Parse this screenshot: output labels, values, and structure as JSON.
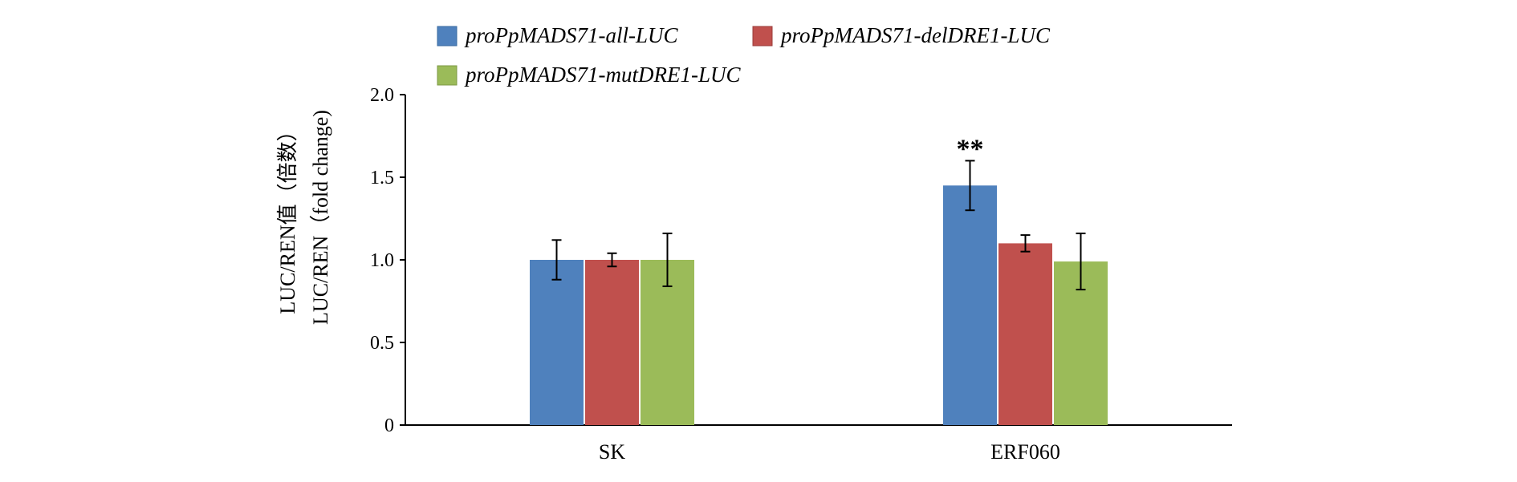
{
  "chart_data": {
    "type": "bar",
    "title": "",
    "categories": [
      "SK",
      "ERF060"
    ],
    "series": [
      {
        "name": "proPpMADS71-all-LUC",
        "color": "#4f81bd",
        "values": [
          1.0,
          1.45
        ],
        "errors": [
          0.12,
          0.15
        ]
      },
      {
        "name": "proPpMADS71-delDRE1-LUC",
        "color": "#c0504d",
        "values": [
          1.0,
          1.1
        ],
        "errors": [
          0.04,
          0.05
        ]
      },
      {
        "name": "proPpMADS71-mutDRE1-LUC",
        "color": "#9bbb59",
        "values": [
          1.0,
          0.99
        ],
        "errors": [
          0.16,
          0.17
        ]
      }
    ],
    "ylabel_line1": "LUC/REN值（倍数）",
    "ylabel_line2": "LUC/REN（fold change)",
    "xlabel": "",
    "ylim": [
      0,
      2.0
    ],
    "yticks": [
      "0",
      "0.5",
      "1.0",
      "1.5",
      "2.0"
    ],
    "grid": false,
    "legend": "top",
    "annotations": [
      {
        "category": "ERF060",
        "series": 0,
        "text": "**"
      }
    ]
  }
}
